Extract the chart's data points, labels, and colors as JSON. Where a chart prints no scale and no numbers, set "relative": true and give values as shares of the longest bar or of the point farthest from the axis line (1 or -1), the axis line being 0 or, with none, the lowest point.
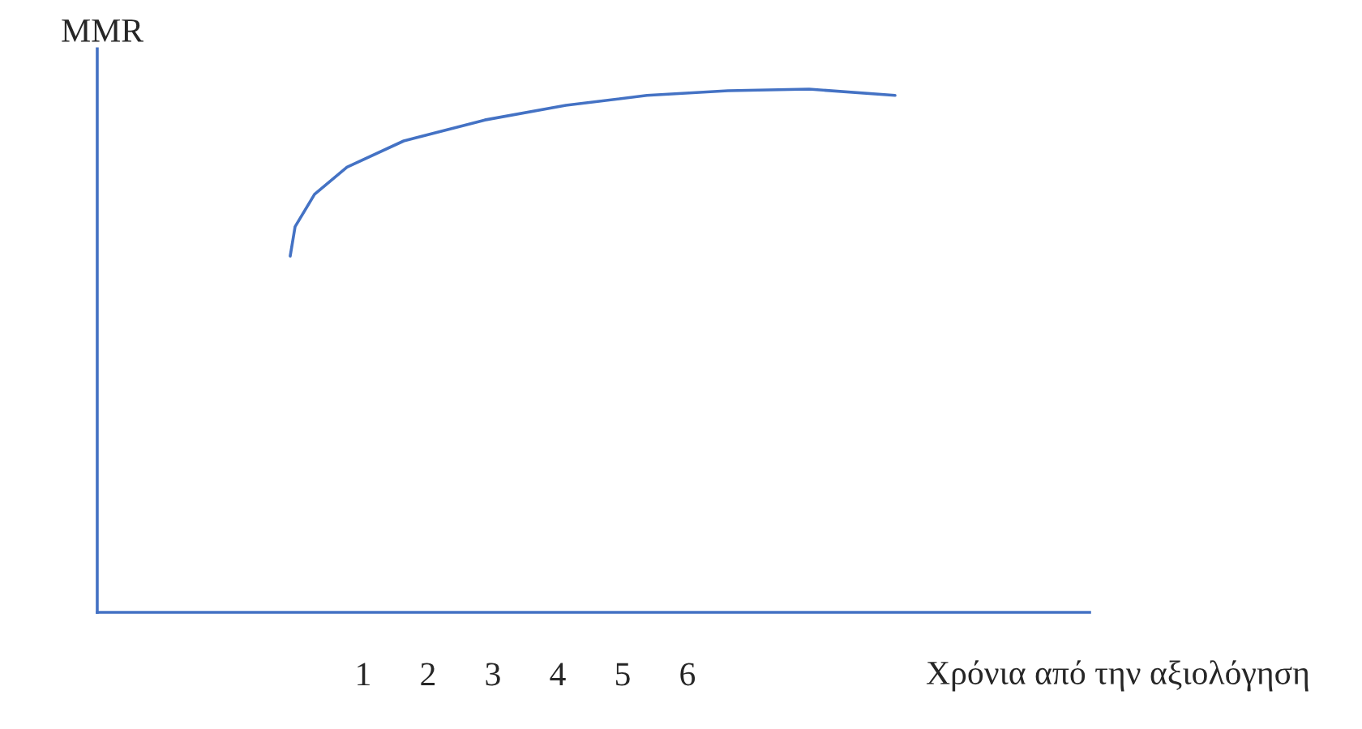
{
  "chart_data": {
    "type": "line",
    "relative": true,
    "ylabel": "MMR",
    "xlabel": "Χρόνια από την αξιολόγηση",
    "x": [
      -0.125,
      -0.05,
      0.25,
      0.75,
      1.625,
      2.875,
      4.125,
      5.375,
      6.625,
      7.875,
      9.2
    ],
    "xlim": [
      -3.1,
      12.2
    ],
    "xticks": [
      1,
      2,
      3,
      4,
      5,
      6
    ],
    "series": [
      {
        "color": "#4472c4",
        "values": [
          0.681,
          0.737,
          0.799,
          0.851,
          0.901,
          0.941,
          0.969,
          0.988,
          0.997,
          1.0,
          0.988
        ]
      }
    ],
    "grid": false,
    "legend": false,
    "marker": "none",
    "line_style": "solid"
  }
}
